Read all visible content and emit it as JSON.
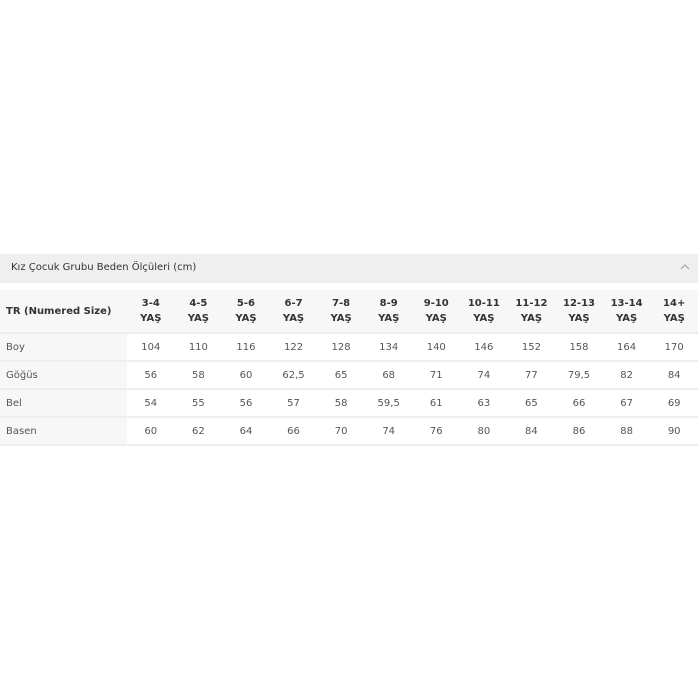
{
  "accordion": {
    "title": "Kız Çocuk Grubu Beden Ölçüleri (cm)",
    "icon": "chevron-up-icon"
  },
  "table": {
    "corner": "TR (Numered Size)",
    "columns": [
      [
        "3-4",
        "YAŞ"
      ],
      [
        "4-5",
        "YAŞ"
      ],
      [
        "5-6",
        "YAŞ"
      ],
      [
        "6-7",
        "YAŞ"
      ],
      [
        "7-8",
        "YAŞ"
      ],
      [
        "8-9",
        "YAŞ"
      ],
      [
        "9-10",
        "YAŞ"
      ],
      [
        "10-11",
        "YAŞ"
      ],
      [
        "11-12",
        "YAŞ"
      ],
      [
        "12-13",
        "YAŞ"
      ],
      [
        "13-14",
        "YAŞ"
      ],
      [
        "14+",
        "YAŞ"
      ]
    ],
    "rows": [
      {
        "label": "Boy",
        "values": [
          "104",
          "110",
          "116",
          "122",
          "128",
          "134",
          "140",
          "146",
          "152",
          "158",
          "164",
          "170"
        ]
      },
      {
        "label": "Göğüs",
        "values": [
          "56",
          "58",
          "60",
          "62,5",
          "65",
          "68",
          "71",
          "74",
          "77",
          "79,5",
          "82",
          "84"
        ]
      },
      {
        "label": "Bel",
        "values": [
          "54",
          "55",
          "56",
          "57",
          "58",
          "59,5",
          "61",
          "63",
          "65",
          "66",
          "67",
          "69"
        ]
      },
      {
        "label": "Basen",
        "values": [
          "60",
          "62",
          "64",
          "66",
          "70",
          "74",
          "76",
          "80",
          "84",
          "86",
          "88",
          "90"
        ]
      }
    ]
  }
}
